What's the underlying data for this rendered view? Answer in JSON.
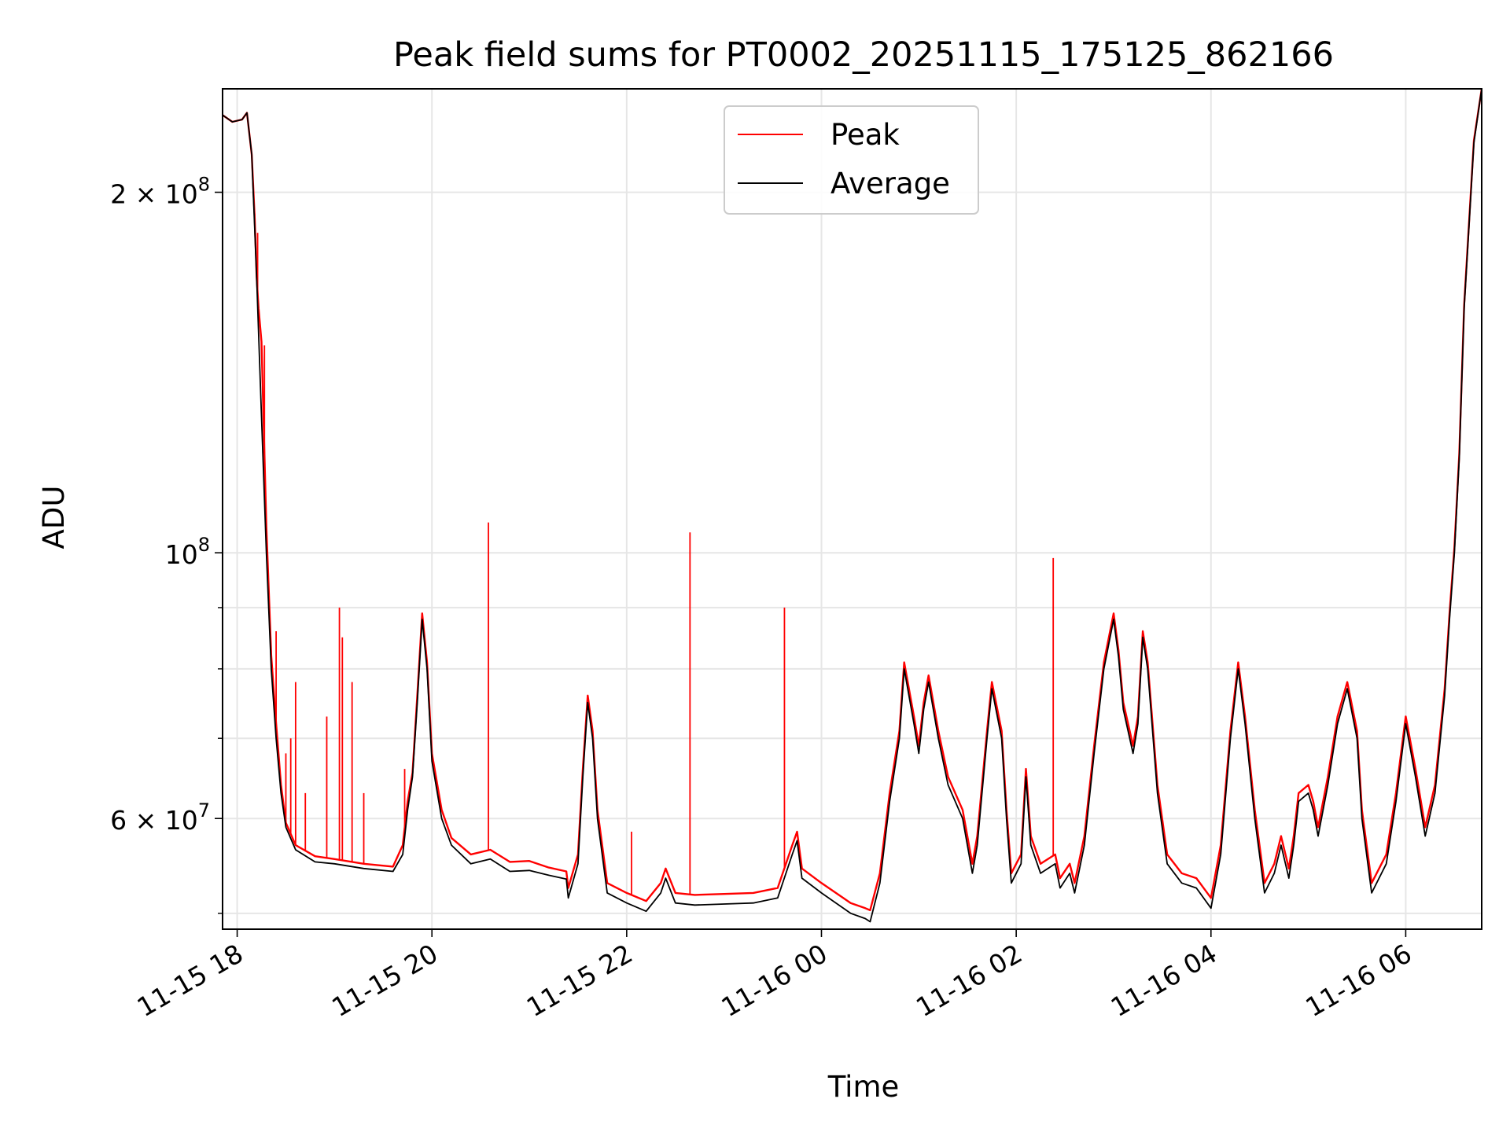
{
  "chart_data": {
    "type": "line",
    "title": "Peak field sums for PT0002_20251115_175125_862166",
    "xlabel": "Time",
    "ylabel": "ADU",
    "yscale": "log",
    "ylim": [
      48500000,
      244000000
    ],
    "xlim_hours": [
      17.85,
      30.78
    ],
    "grid": true,
    "legend_location": "upper center",
    "x_ticks": [
      {
        "hours": 18,
        "label": "11-15 18"
      },
      {
        "hours": 20,
        "label": "11-15 20"
      },
      {
        "hours": 22,
        "label": "11-15 22"
      },
      {
        "hours": 24,
        "label": "11-16 00"
      },
      {
        "hours": 26,
        "label": "11-16 02"
      },
      {
        "hours": 28,
        "label": "11-16 04"
      },
      {
        "hours": 30,
        "label": "11-16 06"
      }
    ],
    "y_major_ticks": [
      {
        "value": 60000000,
        "label": "6 × 10⁷",
        "mantissa": "6 × 10",
        "exp": "7"
      },
      {
        "value": 100000000,
        "label": "10⁸",
        "mantissa": "10",
        "exp": "8"
      },
      {
        "value": 200000000,
        "label": "2 × 10⁸",
        "mantissa": "2 × 10",
        "exp": "8"
      }
    ],
    "y_minor_ticks": [
      50000000,
      70000000,
      80000000,
      90000000
    ],
    "series": [
      {
        "name": "Average",
        "color": "#000000",
        "points": [
          [
            17.85,
            232000000
          ],
          [
            17.95,
            229000000
          ],
          [
            18.05,
            230000000
          ],
          [
            18.1,
            233000000
          ],
          [
            18.15,
            215000000
          ],
          [
            18.2,
            170000000
          ],
          [
            18.25,
            130000000
          ],
          [
            18.3,
            100000000
          ],
          [
            18.35,
            80000000
          ],
          [
            18.4,
            70000000
          ],
          [
            18.45,
            63000000
          ],
          [
            18.5,
            59000000
          ],
          [
            18.6,
            56500000
          ],
          [
            18.8,
            55200000
          ],
          [
            19.0,
            55000000
          ],
          [
            19.3,
            54500000
          ],
          [
            19.6,
            54200000
          ],
          [
            19.7,
            56000000
          ],
          [
            19.75,
            61000000
          ],
          [
            19.8,
            65000000
          ],
          [
            19.85,
            75000000
          ],
          [
            19.9,
            88000000
          ],
          [
            19.95,
            80000000
          ],
          [
            20.0,
            67000000
          ],
          [
            20.1,
            60000000
          ],
          [
            20.2,
            57000000
          ],
          [
            20.4,
            55000000
          ],
          [
            20.6,
            55500000
          ],
          [
            20.8,
            54200000
          ],
          [
            21.0,
            54300000
          ],
          [
            21.2,
            53800000
          ],
          [
            21.38,
            53400000
          ],
          [
            21.4,
            51500000
          ],
          [
            21.5,
            55000000
          ],
          [
            21.55,
            65000000
          ],
          [
            21.6,
            75000000
          ],
          [
            21.65,
            70000000
          ],
          [
            21.7,
            60000000
          ],
          [
            21.8,
            52000000
          ],
          [
            22.0,
            51000000
          ],
          [
            22.2,
            50200000
          ],
          [
            22.35,
            52000000
          ],
          [
            22.4,
            53500000
          ],
          [
            22.5,
            51000000
          ],
          [
            22.7,
            50800000
          ],
          [
            23.0,
            50900000
          ],
          [
            23.3,
            51000000
          ],
          [
            23.55,
            51500000
          ],
          [
            23.7,
            56000000
          ],
          [
            23.75,
            57500000
          ],
          [
            23.8,
            53500000
          ],
          [
            24.0,
            52000000
          ],
          [
            24.3,
            50000000
          ],
          [
            24.45,
            49500000
          ],
          [
            24.5,
            49200000
          ],
          [
            24.6,
            53000000
          ],
          [
            24.7,
            62000000
          ],
          [
            24.8,
            70000000
          ],
          [
            24.85,
            80000000
          ],
          [
            24.95,
            72000000
          ],
          [
            25.0,
            68000000
          ],
          [
            25.05,
            74000000
          ],
          [
            25.1,
            78000000
          ],
          [
            25.2,
            70000000
          ],
          [
            25.3,
            64000000
          ],
          [
            25.45,
            60000000
          ],
          [
            25.55,
            54000000
          ],
          [
            25.6,
            57000000
          ],
          [
            25.7,
            70000000
          ],
          [
            25.75,
            77000000
          ],
          [
            25.85,
            70000000
          ],
          [
            25.9,
            60000000
          ],
          [
            25.95,
            53000000
          ],
          [
            26.05,
            55000000
          ],
          [
            26.1,
            65000000
          ],
          [
            26.15,
            57000000
          ],
          [
            26.25,
            54000000
          ],
          [
            26.4,
            55000000
          ],
          [
            26.45,
            52500000
          ],
          [
            26.55,
            54000000
          ],
          [
            26.6,
            52000000
          ],
          [
            26.7,
            57000000
          ],
          [
            26.8,
            68000000
          ],
          [
            26.9,
            80000000
          ],
          [
            27.0,
            88000000
          ],
          [
            27.05,
            82000000
          ],
          [
            27.1,
            74000000
          ],
          [
            27.2,
            68000000
          ],
          [
            27.25,
            72000000
          ],
          [
            27.3,
            85000000
          ],
          [
            27.35,
            80000000
          ],
          [
            27.45,
            63000000
          ],
          [
            27.55,
            55000000
          ],
          [
            27.7,
            53000000
          ],
          [
            27.85,
            52500000
          ],
          [
            28.0,
            50500000
          ],
          [
            28.1,
            56000000
          ],
          [
            28.2,
            70000000
          ],
          [
            28.28,
            80000000
          ],
          [
            28.35,
            72000000
          ],
          [
            28.45,
            60000000
          ],
          [
            28.55,
            52000000
          ],
          [
            28.65,
            54000000
          ],
          [
            28.72,
            57000000
          ],
          [
            28.8,
            53500000
          ],
          [
            28.85,
            57000000
          ],
          [
            28.9,
            62000000
          ],
          [
            29.0,
            63000000
          ],
          [
            29.05,
            61000000
          ],
          [
            29.1,
            58000000
          ],
          [
            29.2,
            64000000
          ],
          [
            29.3,
            72000000
          ],
          [
            29.4,
            77000000
          ],
          [
            29.5,
            70000000
          ],
          [
            29.55,
            60000000
          ],
          [
            29.65,
            52000000
          ],
          [
            29.8,
            55000000
          ],
          [
            29.9,
            62000000
          ],
          [
            30.0,
            72000000
          ],
          [
            30.1,
            65000000
          ],
          [
            30.2,
            58000000
          ],
          [
            30.3,
            63000000
          ],
          [
            30.4,
            76000000
          ],
          [
            30.45,
            88000000
          ],
          [
            30.5,
            100000000
          ],
          [
            30.55,
            120000000
          ],
          [
            30.6,
            160000000
          ],
          [
            30.7,
            220000000
          ],
          [
            30.78,
            244000000
          ]
        ]
      },
      {
        "name": "Peak",
        "color": "#ff0000",
        "points": [
          [
            17.85,
            232000000
          ],
          [
            17.95,
            229000000
          ],
          [
            18.05,
            230000000
          ],
          [
            18.1,
            233000000
          ],
          [
            18.15,
            215000000
          ],
          [
            18.18,
            190000000
          ],
          [
            18.2,
            170000000
          ],
          [
            18.22,
            160000000
          ],
          [
            18.25,
            150000000
          ],
          [
            18.3,
            105000000
          ],
          [
            18.35,
            82000000
          ],
          [
            18.4,
            72000000
          ],
          [
            18.45,
            64000000
          ],
          [
            18.5,
            59500000
          ],
          [
            18.6,
            57000000
          ],
          [
            18.8,
            55800000
          ],
          [
            19.0,
            55500000
          ],
          [
            19.3,
            55000000
          ],
          [
            19.6,
            54700000
          ],
          [
            19.7,
            57000000
          ],
          [
            19.75,
            62000000
          ],
          [
            19.8,
            65500000
          ],
          [
            19.85,
            76000000
          ],
          [
            19.9,
            89000000
          ],
          [
            19.95,
            81000000
          ],
          [
            20.0,
            68000000
          ],
          [
            20.1,
            61000000
          ],
          [
            20.2,
            57800000
          ],
          [
            20.4,
            56000000
          ],
          [
            20.6,
            56500000
          ],
          [
            20.8,
            55200000
          ],
          [
            21.0,
            55300000
          ],
          [
            21.2,
            54600000
          ],
          [
            21.38,
            54200000
          ],
          [
            21.4,
            52500000
          ],
          [
            21.5,
            56000000
          ],
          [
            21.55,
            66000000
          ],
          [
            21.6,
            76000000
          ],
          [
            21.65,
            71000000
          ],
          [
            21.7,
            61000000
          ],
          [
            21.8,
            53000000
          ],
          [
            22.0,
            52000000
          ],
          [
            22.2,
            51200000
          ],
          [
            22.35,
            53000000
          ],
          [
            22.4,
            54500000
          ],
          [
            22.5,
            52000000
          ],
          [
            22.7,
            51800000
          ],
          [
            23.0,
            51900000
          ],
          [
            23.3,
            52000000
          ],
          [
            23.55,
            52500000
          ],
          [
            23.7,
            57000000
          ],
          [
            23.75,
            58500000
          ],
          [
            23.8,
            54500000
          ],
          [
            24.0,
            53000000
          ],
          [
            24.3,
            51000000
          ],
          [
            24.45,
            50500000
          ],
          [
            24.5,
            50300000
          ],
          [
            24.6,
            54000000
          ],
          [
            24.7,
            63000000
          ],
          [
            24.8,
            71000000
          ],
          [
            24.85,
            81000000
          ],
          [
            24.95,
            73000000
          ],
          [
            25.0,
            69000000
          ],
          [
            25.05,
            75000000
          ],
          [
            25.1,
            79000000
          ],
          [
            25.2,
            71000000
          ],
          [
            25.3,
            65000000
          ],
          [
            25.45,
            61000000
          ],
          [
            25.55,
            55000000
          ],
          [
            25.6,
            58000000
          ],
          [
            25.7,
            71000000
          ],
          [
            25.75,
            78000000
          ],
          [
            25.85,
            71000000
          ],
          [
            25.9,
            61000000
          ],
          [
            25.95,
            54000000
          ],
          [
            26.05,
            56000000
          ],
          [
            26.1,
            66000000
          ],
          [
            26.15,
            58000000
          ],
          [
            26.25,
            55000000
          ],
          [
            26.4,
            56000000
          ],
          [
            26.45,
            53500000
          ],
          [
            26.55,
            55000000
          ],
          [
            26.6,
            53000000
          ],
          [
            26.7,
            58000000
          ],
          [
            26.8,
            69000000
          ],
          [
            26.9,
            81000000
          ],
          [
            27.0,
            89000000
          ],
          [
            27.05,
            83000000
          ],
          [
            27.1,
            75000000
          ],
          [
            27.2,
            69000000
          ],
          [
            27.25,
            73000000
          ],
          [
            27.3,
            86000000
          ],
          [
            27.35,
            81000000
          ],
          [
            27.45,
            64000000
          ],
          [
            27.55,
            56000000
          ],
          [
            27.7,
            54000000
          ],
          [
            27.85,
            53500000
          ],
          [
            28.0,
            51500000
          ],
          [
            28.1,
            57000000
          ],
          [
            28.2,
            71000000
          ],
          [
            28.28,
            81000000
          ],
          [
            28.35,
            73000000
          ],
          [
            28.45,
            61000000
          ],
          [
            28.55,
            53000000
          ],
          [
            28.65,
            55000000
          ],
          [
            28.72,
            58000000
          ],
          [
            28.8,
            54500000
          ],
          [
            28.85,
            58000000
          ],
          [
            28.9,
            63000000
          ],
          [
            29.0,
            64000000
          ],
          [
            29.05,
            62000000
          ],
          [
            29.1,
            59000000
          ],
          [
            29.2,
            65000000
          ],
          [
            29.3,
            73000000
          ],
          [
            29.4,
            78000000
          ],
          [
            29.5,
            71000000
          ],
          [
            29.55,
            61000000
          ],
          [
            29.65,
            53000000
          ],
          [
            29.8,
            56000000
          ],
          [
            29.9,
            63000000
          ],
          [
            30.0,
            73000000
          ],
          [
            30.1,
            66000000
          ],
          [
            30.2,
            59000000
          ],
          [
            30.3,
            64000000
          ],
          [
            30.4,
            77000000
          ],
          [
            30.45,
            89000000
          ],
          [
            30.5,
            101000000
          ],
          [
            30.55,
            121000000
          ],
          [
            30.6,
            161000000
          ],
          [
            30.7,
            221000000
          ],
          [
            30.78,
            244000000
          ]
        ],
        "spikes": [
          [
            18.18,
            192000000
          ],
          [
            18.21,
            185000000
          ],
          [
            18.25,
            150000000
          ],
          [
            18.28,
            149000000
          ],
          [
            18.4,
            86000000
          ],
          [
            18.5,
            68000000
          ],
          [
            18.55,
            70000000
          ],
          [
            18.6,
            78000000
          ],
          [
            18.7,
            63000000
          ],
          [
            18.92,
            73000000
          ],
          [
            19.05,
            90000000
          ],
          [
            19.08,
            85000000
          ],
          [
            19.18,
            78000000
          ],
          [
            19.3,
            63000000
          ],
          [
            19.72,
            66000000
          ],
          [
            20.58,
            106000000
          ],
          [
            22.05,
            58500000
          ],
          [
            22.65,
            104000000
          ],
          [
            23.62,
            90000000
          ],
          [
            26.38,
            99000000
          ]
        ]
      }
    ],
    "legend": [
      {
        "name": "Peak",
        "color": "#ff0000"
      },
      {
        "name": "Average",
        "color": "#000000"
      }
    ]
  }
}
